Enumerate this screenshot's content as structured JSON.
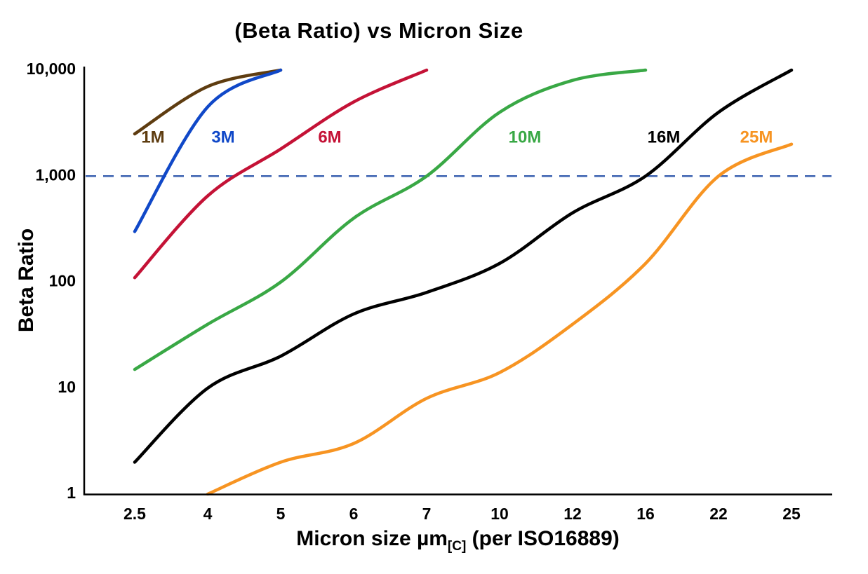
{
  "chart": {
    "title": "(Beta Ratio) vs Micron Size",
    "ylabel": "Beta Ratio",
    "xlabel_prefix": "Micron size µm",
    "xlabel_subscript": "[C]",
    "xlabel_suffix": " (per ISO16889)"
  },
  "chart_data": {
    "type": "line",
    "title": "(Beta Ratio) vs Micron Size",
    "xlabel": "Micron size µm[C] (per ISO16889)",
    "ylabel": "Beta Ratio",
    "x_scale": "categorical",
    "y_scale": "log",
    "ylim": [
      1,
      10000
    ],
    "grid": false,
    "legend_position": "inline-labels",
    "categories": [
      "2.5",
      "4",
      "5",
      "6",
      "7",
      "10",
      "12",
      "16",
      "22",
      "25"
    ],
    "y_tick_labels": [
      "1",
      "10",
      "100",
      "1,000",
      "10,000"
    ],
    "threshold_line": {
      "value": 1000,
      "style": "dashed",
      "color": "#3A61B0"
    },
    "series": [
      {
        "name": "1M",
        "color": "#5E3C10",
        "values": [
          2500,
          7000,
          10000,
          null,
          null,
          null,
          null,
          null,
          null,
          null
        ]
      },
      {
        "name": "3M",
        "color": "#1048C8",
        "values": [
          300,
          4500,
          10000,
          null,
          null,
          null,
          null,
          null,
          null,
          null
        ]
      },
      {
        "name": "6M",
        "color": "#C41236",
        "values": [
          110,
          650,
          1800,
          5000,
          10000,
          null,
          null,
          null,
          null,
          null
        ]
      },
      {
        "name": "10M",
        "color": "#39A845",
        "values": [
          15,
          40,
          100,
          400,
          1000,
          4000,
          8000,
          10000,
          null,
          null
        ]
      },
      {
        "name": "16M",
        "color": "#000000",
        "values": [
          2,
          10,
          20,
          50,
          80,
          150,
          450,
          1000,
          4000,
          10000
        ]
      },
      {
        "name": "25M",
        "color": "#F79422",
        "values": [
          null,
          1,
          2,
          3,
          8,
          14,
          40,
          150,
          1000,
          2000
        ]
      }
    ]
  }
}
